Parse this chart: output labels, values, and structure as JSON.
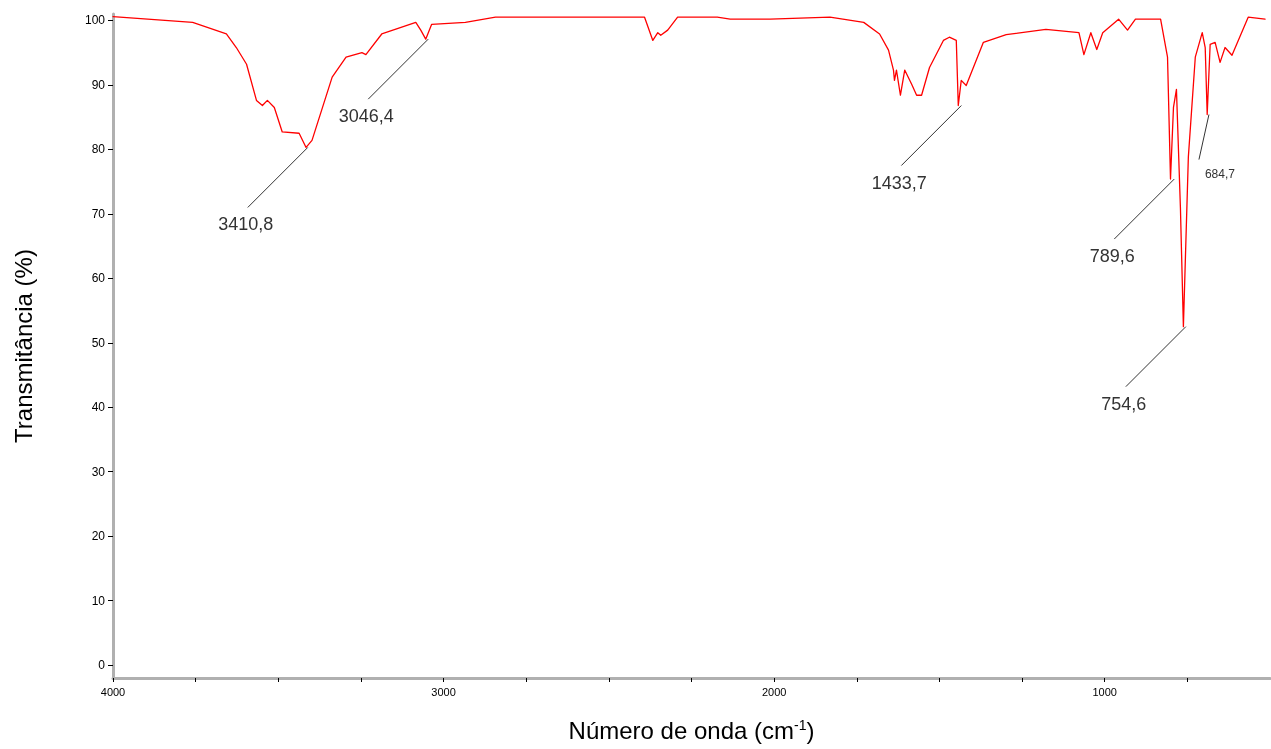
{
  "chart_data": {
    "type": "line",
    "xlabel": "Número de onda (cm$^{-1}$)",
    "ylabel": "Transmitância (%)",
    "xlim": [
      4000,
      500
    ],
    "ylim": [
      -2,
      101
    ],
    "xticks": [
      4000,
      {
        "value": 3750,
        "label": null
      },
      {
        "value": 3500,
        "label": null
      },
      {
        "value": 3250,
        "label": null
      },
      3000,
      {
        "value": 2750,
        "label": null
      },
      {
        "value": 2500,
        "label": null
      },
      {
        "value": 2250,
        "label": null
      },
      2000,
      {
        "value": 1750,
        "label": null
      },
      {
        "value": 1500,
        "label": null
      },
      {
        "value": 1250,
        "label": null
      },
      1000,
      {
        "value": 750,
        "label": null
      }
    ],
    "yticks": [
      0,
      10,
      20,
      30,
      40,
      50,
      60,
      70,
      80,
      90,
      100
    ],
    "grid": false,
    "marker": "none",
    "line_style": "solid",
    "x": [
      4000,
      3759,
      3657,
      3627,
      3596,
      3566,
      3548,
      3533,
      3512,
      3488,
      3437,
      3416,
      3398,
      3337,
      3295,
      3247,
      3235,
      3187,
      3084,
      3069,
      3054,
      3036,
      2934,
      2843,
      2392,
      2367,
      2352,
      2343,
      2322,
      2292,
      2172,
      2133,
      2012,
      1831,
      1729,
      1681,
      1654,
      1639,
      1636,
      1630,
      1618,
      1605,
      1584,
      1569,
      1554,
      1530,
      1488,
      1470,
      1449,
      1443,
      1434,
      1419,
      1367,
      1298,
      1178,
      1078,
      1063,
      1042,
      1024,
      1006,
      958,
      931,
      907,
      831,
      810,
      801,
      792,
      783,
      771,
      762,
      747,
      726,
      705,
      696,
      690,
      681,
      666,
      651,
      636,
      615,
      566,
      515
    ],
    "series": [
      {
        "color": "#ff0000",
        "values": [
          100.6,
          99.7,
          97.9,
          95.8,
          93.2,
          87.6,
          86.8,
          87.6,
          86.5,
          82.7,
          82.5,
          80.3,
          81.4,
          91.2,
          94.3,
          95.0,
          94.7,
          97.9,
          99.7,
          98.5,
          97.1,
          99.4,
          99.7,
          100.5,
          100.5,
          96.9,
          98.1,
          97.7,
          98.5,
          100.5,
          100.5,
          100.2,
          100.2,
          100.5,
          99.7,
          97.9,
          95.4,
          92.3,
          90.7,
          92.3,
          88.4,
          92.3,
          90.1,
          88.4,
          88.4,
          92.7,
          96.9,
          97.4,
          96.9,
          86.8,
          90.7,
          89.9,
          96.6,
          97.8,
          98.6,
          98.1,
          94.7,
          98.1,
          95.5,
          98.1,
          100.2,
          98.5,
          100.2,
          100.2,
          94.3,
          75.4,
          86.5,
          89.3,
          71,
          52.5,
          78.8,
          94.3,
          98.1,
          95.8,
          85.4,
          96.3,
          96.6,
          93.5,
          95.8,
          94.6,
          100.5,
          100.2
        ]
      }
    ],
    "annotations": [
      {
        "text": "3410,8",
        "x": 3410.8,
        "y": 80.3
      },
      {
        "text": "3046,4",
        "x": 3046.4,
        "y": 97.1
      },
      {
        "text": "1433,7",
        "x": 1433.7,
        "y": 86.8
      },
      {
        "text": "789,6",
        "x": 789.6,
        "y": 75.4
      },
      {
        "text": "754,6",
        "x": 754.6,
        "y": 52.5
      },
      {
        "text": "684,7",
        "x": 684.7,
        "y": 85.4
      }
    ]
  }
}
